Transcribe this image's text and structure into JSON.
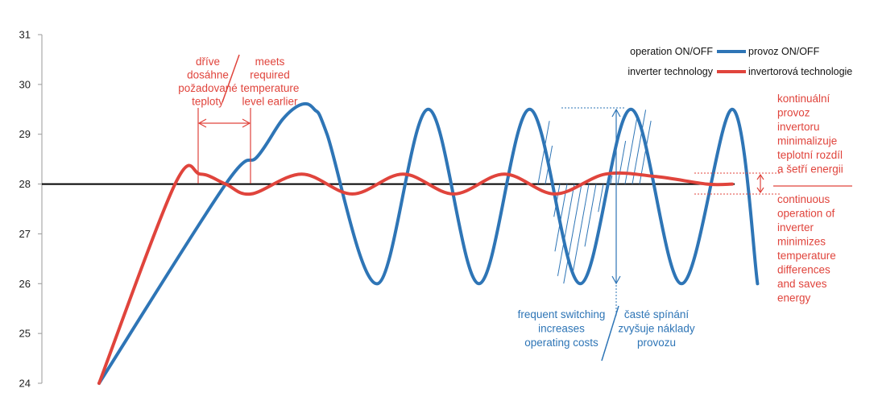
{
  "colors": {
    "onoff": "#2e75b6",
    "inverter": "#e0443c",
    "setpoint": "#000000",
    "axis": "#999999"
  },
  "chart_data": {
    "type": "line",
    "ylim": [
      24,
      31
    ],
    "yticks": [
      "24",
      "25",
      "26",
      "27",
      "28",
      "29",
      "30",
      "31"
    ],
    "grid": false,
    "legend_position": "top-right",
    "setpoint": 28,
    "series": [
      {
        "name": "operation ON/OFF",
        "name_cz": "provoz ON/OFF",
        "x": [
          1.0,
          3.0,
          3.5,
          3.9,
          4.2,
          4.4,
          4.6,
          5.4,
          6.2,
          7.0,
          7.8,
          8.6,
          9.4,
          10.2,
          11.0,
          11.4
        ],
        "y": [
          24.0,
          28.0,
          28.55,
          29.3,
          29.6,
          29.5,
          29.0,
          26.0,
          29.5,
          26.0,
          29.5,
          26.0,
          29.5,
          26.0,
          29.5,
          26.0
        ]
      },
      {
        "name": "inverter technology",
        "name_cz": "invertorová technologie",
        "x": [
          1.0,
          2.2,
          2.6,
          3.0,
          3.4,
          4.2,
          5.0,
          5.8,
          6.6,
          7.4,
          8.2,
          9.0,
          9.8,
          10.6,
          11.0
        ],
        "y": [
          24.0,
          28.0,
          28.2,
          28.0,
          27.8,
          28.2,
          27.8,
          28.2,
          27.8,
          28.2,
          27.8,
          28.2,
          28.15,
          28.0,
          28.0
        ]
      }
    ]
  },
  "annotations": {
    "earlier_cz": [
      "dříve",
      "dosáhne",
      "požadované",
      "teploty"
    ],
    "earlier_en": [
      "meets",
      "required",
      "temperature",
      "level earlier"
    ],
    "inverter_cz": [
      "kontinuální",
      "provoz",
      "invertoru",
      "minimalizuje",
      "teplotní rozdíl",
      "a šetří energii"
    ],
    "inverter_en": [
      "continuous",
      "operation of",
      "inverter",
      "minimizes",
      "temperature",
      "differences",
      "and saves",
      "energy"
    ],
    "switching_en": [
      "frequent switching",
      "increases",
      "operating costs"
    ],
    "switching_cz": [
      "časté spínání",
      "zvyšuje náklady",
      "provozu"
    ]
  }
}
